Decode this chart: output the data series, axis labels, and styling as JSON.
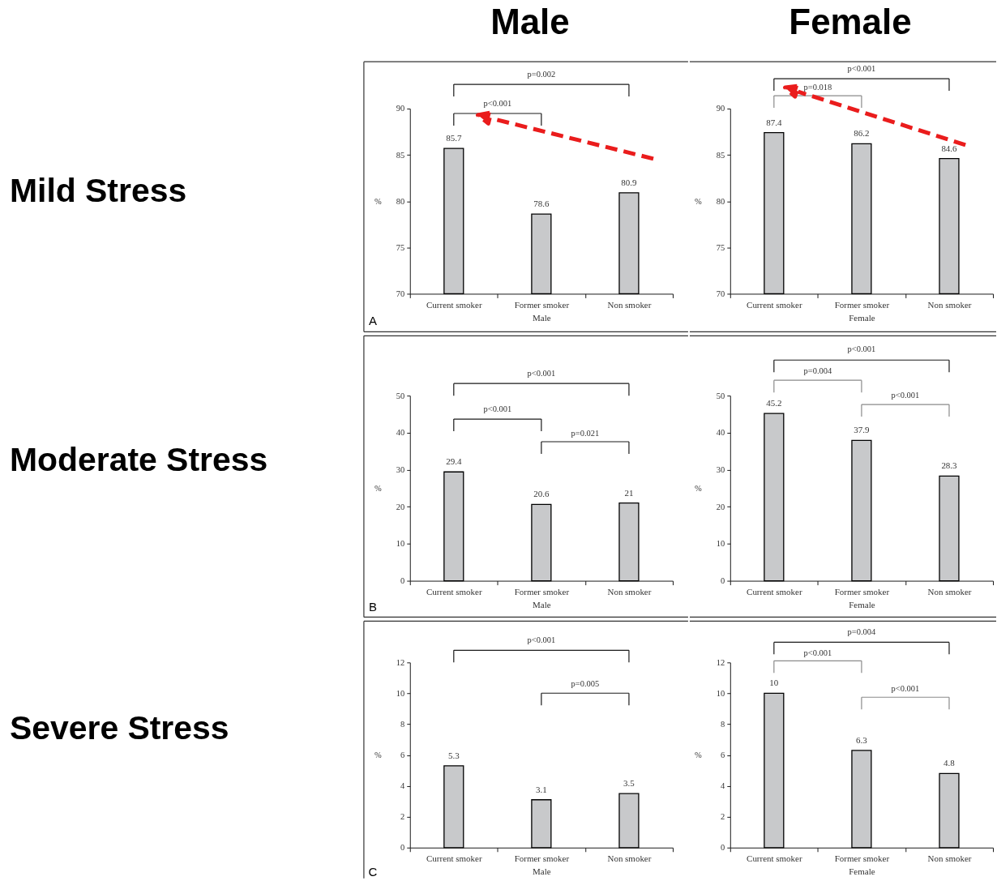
{
  "chart_data": [
    {
      "type": "bar",
      "title": "Male",
      "categories": [
        "Current smoker",
        "Former smoker",
        "Non smoker"
      ],
      "values": [
        85.7,
        78.6,
        80.9
      ],
      "color": "#c8c9cb",
      "xlabel": "Male",
      "ylabel": "%",
      "ylim": [
        70,
        90
      ],
      "yticks": [
        70,
        75,
        80,
        85,
        90
      ],
      "data_labels": true,
      "annotations": [
        "Mild Stress",
        "A",
        "p=0.002",
        "p<0.001"
      ]
    },
    {
      "type": "bar",
      "title": "Female",
      "categories": [
        "Current smoker",
        "Former smoker",
        "Non smoker"
      ],
      "values": [
        87.4,
        86.2,
        84.6
      ],
      "color": "#c8c9cb",
      "xlabel": "Female",
      "ylabel": "%",
      "ylim": [
        70,
        90
      ],
      "yticks": [
        70,
        75,
        80,
        85,
        90
      ],
      "data_labels": true,
      "annotations": [
        "p<0.001",
        "p=0.018"
      ]
    },
    {
      "type": "bar",
      "categories": [
        "Current smoker",
        "Former smoker",
        "Non smoker"
      ],
      "values": [
        29.4,
        20.6,
        21
      ],
      "color": "#c8c9cb",
      "xlabel": "Male",
      "ylabel": "%",
      "ylim": [
        0,
        50
      ],
      "yticks": [
        0,
        10,
        20,
        30,
        40,
        50
      ],
      "data_labels": true,
      "annotations": [
        "Moderate Stress",
        "B",
        "p<0.001",
        "p<0.001",
        "p=0.021"
      ]
    },
    {
      "type": "bar",
      "categories": [
        "Current smoker",
        "Former smoker",
        "Non smoker"
      ],
      "values": [
        45.2,
        37.9,
        28.3
      ],
      "color": "#c8c9cb",
      "xlabel": "Female",
      "ylabel": "%",
      "ylim": [
        0,
        50
      ],
      "yticks": [
        0,
        10,
        20,
        30,
        40,
        50
      ],
      "data_labels": true,
      "annotations": [
        "p<0.001",
        "p=0.004",
        "p<0.001"
      ]
    },
    {
      "type": "bar",
      "categories": [
        "Current smoker",
        "Former smoker",
        "Non smoker"
      ],
      "values": [
        5.3,
        3.1,
        3.5
      ],
      "color": "#c8c9cb",
      "xlabel": "Male",
      "ylabel": "%",
      "ylim": [
        0,
        12
      ],
      "yticks": [
        0,
        2,
        4,
        6,
        8,
        10,
        12
      ],
      "data_labels": true,
      "annotations": [
        "Severe Stress",
        "C",
        "p<0.001",
        "p=0.005"
      ]
    },
    {
      "type": "bar",
      "categories": [
        "Current smoker",
        "Former smoker",
        "Non smoker"
      ],
      "values": [
        10,
        6.3,
        4.8
      ],
      "color": "#c8c9cb",
      "xlabel": "Female",
      "ylabel": "%",
      "ylim": [
        0,
        12
      ],
      "yticks": [
        0,
        2,
        4,
        6,
        8,
        10,
        12
      ],
      "data_labels": true,
      "annotations": [
        "p=0.004",
        "p<0.001",
        "p<0.001"
      ]
    }
  ]
}
